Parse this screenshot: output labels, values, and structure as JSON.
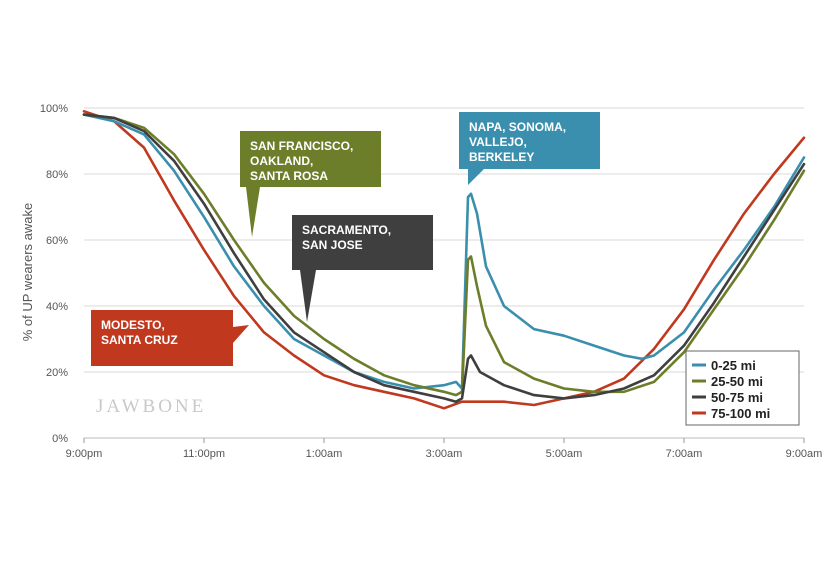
{
  "chart_data": {
    "type": "line",
    "ylabel": "% of UP wearers awake",
    "y_ticks": [
      {
        "value": 0,
        "label": "0%"
      },
      {
        "value": 20,
        "label": "20%"
      },
      {
        "value": 40,
        "label": "40%"
      },
      {
        "value": 60,
        "label": "60%"
      },
      {
        "value": 80,
        "label": "80%"
      },
      {
        "value": 100,
        "label": "100%"
      }
    ],
    "x_ticks": [
      {
        "value": 0,
        "label": "9:00pm"
      },
      {
        "value": 2,
        "label": "11:00pm"
      },
      {
        "value": 4,
        "label": "1:00am"
      },
      {
        "value": 6,
        "label": "3:00am"
      },
      {
        "value": 8,
        "label": "5:00am"
      },
      {
        "value": 10,
        "label": "7:00am"
      },
      {
        "value": 12,
        "label": "9:00am"
      }
    ],
    "xlim": [
      0,
      12
    ],
    "ylim": [
      0,
      100
    ],
    "grid": "horizontal",
    "legend_position": "bottom-right",
    "watermark": "JAWBONE",
    "series": [
      {
        "name": "0-25 mi",
        "color": "#3b8fae",
        "points": [
          [
            0,
            98
          ],
          [
            0.5,
            96
          ],
          [
            1,
            92
          ],
          [
            1.5,
            81
          ],
          [
            2,
            67
          ],
          [
            2.5,
            52
          ],
          [
            3,
            40
          ],
          [
            3.5,
            30
          ],
          [
            4,
            25
          ],
          [
            4.5,
            20
          ],
          [
            5,
            17
          ],
          [
            5.5,
            15
          ],
          [
            6,
            16
          ],
          [
            6.2,
            17
          ],
          [
            6.3,
            15
          ],
          [
            6.4,
            73
          ],
          [
            6.45,
            74
          ],
          [
            6.55,
            68
          ],
          [
            6.7,
            52
          ],
          [
            7,
            40
          ],
          [
            7.5,
            33
          ],
          [
            8,
            31
          ],
          [
            8.5,
            28
          ],
          [
            9,
            25
          ],
          [
            9.3,
            24
          ],
          [
            9.5,
            25
          ],
          [
            10,
            32
          ],
          [
            10.5,
            45
          ],
          [
            11,
            57
          ],
          [
            11.5,
            70
          ],
          [
            12,
            85
          ]
        ]
      },
      {
        "name": "25-50 mi",
        "color": "#6c7e2a",
        "points": [
          [
            0,
            98
          ],
          [
            0.5,
            97
          ],
          [
            1,
            94
          ],
          [
            1.5,
            86
          ],
          [
            2,
            74
          ],
          [
            2.5,
            60
          ],
          [
            3,
            47
          ],
          [
            3.5,
            37
          ],
          [
            4,
            30
          ],
          [
            4.5,
            24
          ],
          [
            5,
            19
          ],
          [
            5.5,
            16
          ],
          [
            6,
            14
          ],
          [
            6.2,
            13
          ],
          [
            6.3,
            14
          ],
          [
            6.4,
            54
          ],
          [
            6.45,
            55
          ],
          [
            6.55,
            46
          ],
          [
            6.7,
            34
          ],
          [
            7,
            23
          ],
          [
            7.5,
            18
          ],
          [
            8,
            15
          ],
          [
            8.5,
            14
          ],
          [
            9,
            14
          ],
          [
            9.5,
            17
          ],
          [
            10,
            26
          ],
          [
            10.5,
            39
          ],
          [
            11,
            52
          ],
          [
            11.5,
            66
          ],
          [
            12,
            81
          ]
        ]
      },
      {
        "name": "50-75 mi",
        "color": "#3f3f3f",
        "points": [
          [
            0,
            98
          ],
          [
            0.5,
            97
          ],
          [
            1,
            93
          ],
          [
            1.5,
            84
          ],
          [
            2,
            71
          ],
          [
            2.5,
            56
          ],
          [
            3,
            42
          ],
          [
            3.5,
            32
          ],
          [
            4,
            26
          ],
          [
            4.5,
            20
          ],
          [
            5,
            16
          ],
          [
            5.5,
            14
          ],
          [
            6,
            12
          ],
          [
            6.2,
            11
          ],
          [
            6.3,
            12
          ],
          [
            6.4,
            24
          ],
          [
            6.45,
            25
          ],
          [
            6.6,
            20
          ],
          [
            7,
            16
          ],
          [
            7.5,
            13
          ],
          [
            8,
            12
          ],
          [
            8.5,
            13
          ],
          [
            9,
            15
          ],
          [
            9.5,
            19
          ],
          [
            10,
            28
          ],
          [
            10.5,
            41
          ],
          [
            11,
            55
          ],
          [
            11.5,
            69
          ],
          [
            12,
            83
          ]
        ]
      },
      {
        "name": "75-100 mi",
        "color": "#c0391f",
        "points": [
          [
            0,
            99
          ],
          [
            0.5,
            96
          ],
          [
            1,
            88
          ],
          [
            1.5,
            72
          ],
          [
            2,
            57
          ],
          [
            2.5,
            43
          ],
          [
            3,
            32
          ],
          [
            3.5,
            25
          ],
          [
            4,
            19
          ],
          [
            4.5,
            16
          ],
          [
            5,
            14
          ],
          [
            5.5,
            12
          ],
          [
            6,
            9
          ],
          [
            6.3,
            11
          ],
          [
            6.5,
            11
          ],
          [
            7,
            11
          ],
          [
            7.5,
            10
          ],
          [
            8,
            12
          ],
          [
            8.5,
            14
          ],
          [
            9,
            18
          ],
          [
            9.5,
            27
          ],
          [
            10,
            39
          ],
          [
            10.5,
            54
          ],
          [
            11,
            68
          ],
          [
            11.5,
            80
          ],
          [
            12,
            91
          ]
        ]
      }
    ],
    "annotations": [
      {
        "lines": [
          "SAN FRANCISCO,",
          "OAKLAND,",
          "SANTA ROSA"
        ],
        "color": "#6c7e2a"
      },
      {
        "lines": [
          "SACRAMENTO,",
          "SAN JOSE"
        ],
        "color": "#3f3f3f"
      },
      {
        "lines": [
          "NAPA, SONOMA,",
          "VALLEJO,",
          "BERKELEY"
        ],
        "color": "#3b8fae"
      },
      {
        "lines": [
          "MODESTO,",
          "SANTA CRUZ"
        ],
        "color": "#c0391f"
      }
    ]
  }
}
